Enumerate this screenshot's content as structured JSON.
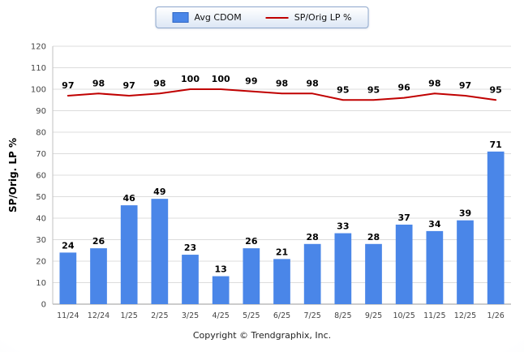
{
  "page": {
    "copyright": "Copyright © Trendgraphix, Inc."
  },
  "legend": {
    "position": "top-center",
    "items": [
      {
        "label": "Avg CDOM",
        "swatch": "bar",
        "color": "#4a86e8"
      },
      {
        "label": "SP/Orig LP %",
        "swatch": "line",
        "color": "#c00000"
      }
    ]
  },
  "chart_data": {
    "type": "bar+line",
    "title": "",
    "categories": [
      "11/24",
      "12/24",
      "1/25",
      "2/25",
      "3/25",
      "4/25",
      "5/25",
      "6/25",
      "7/25",
      "8/25",
      "9/25",
      "10/25",
      "11/25",
      "12/25",
      "1/26"
    ],
    "series": [
      {
        "name": "Avg CDOM",
        "type": "bar",
        "color": "#4a86e8",
        "values": [
          24,
          26,
          46,
          49,
          23,
          13,
          26,
          21,
          28,
          33,
          28,
          37,
          34,
          39,
          71
        ]
      },
      {
        "name": "SP/Orig LP %",
        "type": "line",
        "color": "#c00000",
        "values": [
          97,
          98,
          97,
          98,
          100,
          100,
          99,
          98,
          98,
          95,
          95,
          96,
          98,
          97,
          95
        ]
      }
    ],
    "xlabel": "",
    "ylabel": "SP/Orig. LP %",
    "ylim": [
      0,
      120
    ],
    "ytick_step": 10,
    "grid": true,
    "legend_position": "top-center"
  }
}
